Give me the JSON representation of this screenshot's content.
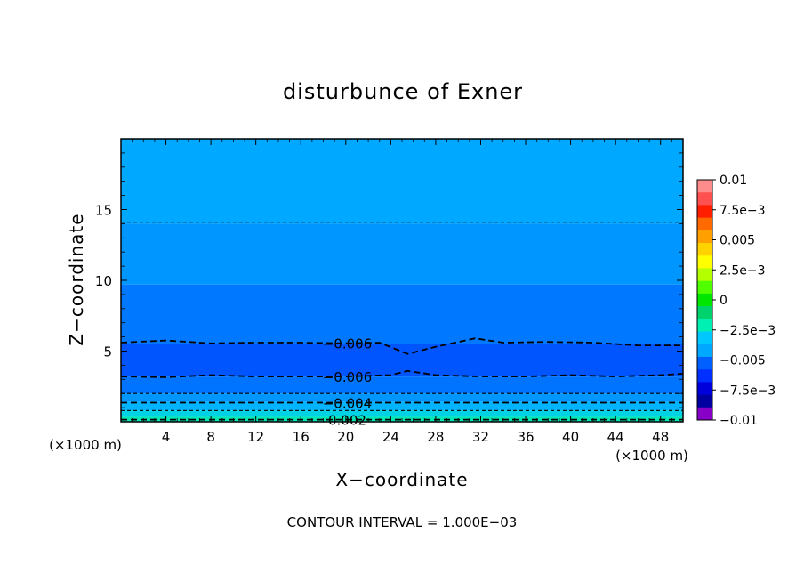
{
  "chart_data": {
    "type": "heatmap",
    "title": "disturbunce of Exner",
    "xlabel": "X−coordinate",
    "ylabel": "Z−coordinate",
    "x_unit": "(×1000 m)",
    "y_unit": "(×1000 m)",
    "footer": "CONTOUR INTERVAL = 1.000E−03",
    "xlim": [
      0,
      50
    ],
    "ylim": [
      0,
      20
    ],
    "x_ticks": [
      4,
      8,
      12,
      16,
      20,
      24,
      28,
      32,
      36,
      40,
      44,
      48
    ],
    "y_ticks": [
      5,
      10,
      15
    ],
    "colorbar": {
      "range": [
        -0.01,
        0.01
      ],
      "tick_labels": [
        "0.01",
        "7.5e−3",
        "0.005",
        "2.5e−3",
        "0",
        "−2.5e−3",
        "−0.005",
        "−7.5e−3",
        "−0.01"
      ],
      "tick_values": [
        0.01,
        0.0075,
        0.005,
        0.0025,
        0,
        -0.0025,
        -0.005,
        -0.0075,
        -0.01
      ],
      "colors_top_to_bottom": [
        "#ff8c8c",
        "#ff5050",
        "#ff1e00",
        "#ff6a00",
        "#ffa000",
        "#ffd200",
        "#ffff00",
        "#b4ff00",
        "#50ff00",
        "#00e600",
        "#00d26e",
        "#00f0b4",
        "#00c8ff",
        "#00a8ff",
        "#0060ff",
        "#0030ff",
        "#0000dc",
        "#0000a0",
        "#8800c8"
      ]
    },
    "bands": [
      {
        "z_bottom": 14.0,
        "z_top": 20.0,
        "color": "#00a8ff"
      },
      {
        "z_bottom": 9.7,
        "z_top": 14.0,
        "color": "#0096ff"
      },
      {
        "z_bottom": 5.5,
        "z_top": 9.7,
        "color": "#0078ff"
      },
      {
        "z_bottom": 3.2,
        "z_top": 5.5,
        "color": "#0055ff"
      },
      {
        "z_bottom": 2.0,
        "z_top": 3.2,
        "color": "#0074ff"
      },
      {
        "z_bottom": 1.4,
        "z_top": 2.0,
        "color": "#0096ff"
      },
      {
        "z_bottom": 0.8,
        "z_top": 1.4,
        "color": "#00b4ff"
      },
      {
        "z_bottom": 0.35,
        "z_top": 0.8,
        "color": "#00d2e6"
      },
      {
        "z_bottom": 0.0,
        "z_top": 0.35,
        "color": "#00e6b4"
      }
    ],
    "contours": [
      {
        "label": "",
        "points": [
          [
            0,
            14.1
          ],
          [
            50,
            14.1
          ]
        ],
        "style": "thin"
      },
      {
        "label": "−0.006",
        "points": [
          [
            0,
            5.6
          ],
          [
            4,
            5.75
          ],
          [
            8,
            5.55
          ],
          [
            12,
            5.6
          ],
          [
            16,
            5.6
          ],
          [
            20,
            5.55
          ],
          [
            23,
            5.6
          ],
          [
            25.5,
            4.8
          ],
          [
            28,
            5.3
          ],
          [
            31.5,
            5.9
          ],
          [
            34,
            5.6
          ],
          [
            38,
            5.65
          ],
          [
            42,
            5.6
          ],
          [
            46,
            5.4
          ],
          [
            50,
            5.4
          ]
        ],
        "style": "bold",
        "label_x": 19.5
      },
      {
        "label": "−0.006",
        "points": [
          [
            0,
            3.2
          ],
          [
            4,
            3.15
          ],
          [
            8,
            3.3
          ],
          [
            12,
            3.2
          ],
          [
            16,
            3.2
          ],
          [
            20,
            3.2
          ],
          [
            24,
            3.3
          ],
          [
            25.5,
            3.6
          ],
          [
            28,
            3.3
          ],
          [
            32,
            3.2
          ],
          [
            36,
            3.2
          ],
          [
            40,
            3.3
          ],
          [
            44,
            3.2
          ],
          [
            48,
            3.3
          ],
          [
            50,
            3.4
          ]
        ],
        "style": "bold",
        "label_x": 19.5
      },
      {
        "label": "",
        "points": [
          [
            0,
            2.0
          ],
          [
            50,
            2.0
          ]
        ],
        "style": "medium"
      },
      {
        "label": "−0.004",
        "points": [
          [
            0,
            1.35
          ],
          [
            50,
            1.35
          ]
        ],
        "style": "bold",
        "label_x": 19.5
      },
      {
        "label": "",
        "points": [
          [
            0,
            0.8
          ],
          [
            50,
            0.8
          ]
        ],
        "style": "medium"
      },
      {
        "label": "0.002",
        "points": [
          [
            0,
            0.15
          ],
          [
            50,
            0.15
          ]
        ],
        "style": "bold",
        "label_x": 19.5
      }
    ]
  }
}
